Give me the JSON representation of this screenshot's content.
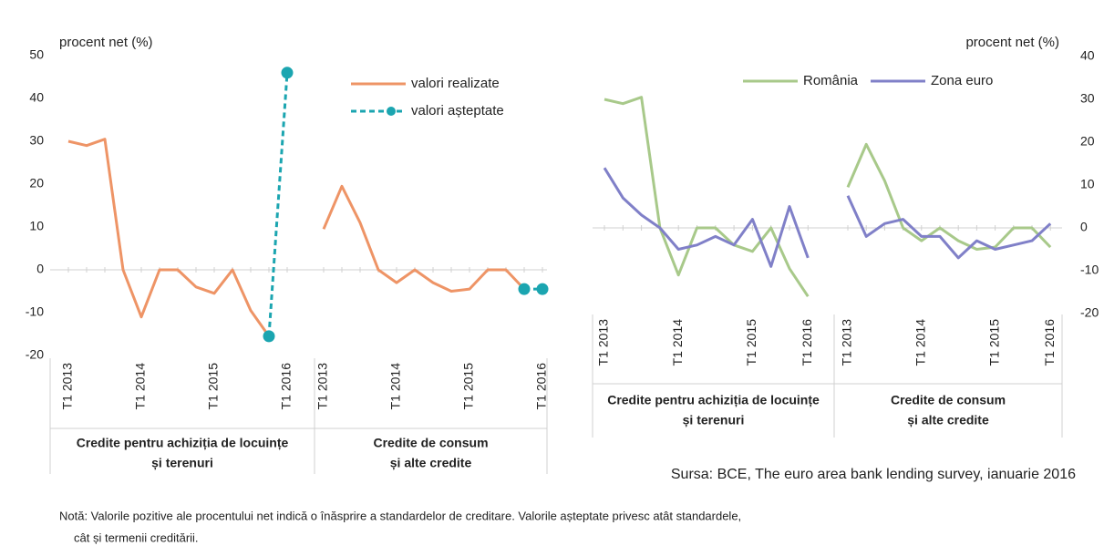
{
  "chart_data": [
    {
      "type": "line",
      "y_label": "procent net (%)",
      "ylim": [
        -20,
        50
      ],
      "yticks": [
        -20,
        -10,
        0,
        10,
        20,
        30,
        40,
        50
      ],
      "y_axis": "left",
      "legend": "top-right",
      "groups": [
        {
          "label": [
            "Credite pentru achiziția de locuințe",
            "și terenuri"
          ],
          "categories": [
            "T1 2013",
            null,
            null,
            null,
            "T1 2014",
            null,
            null,
            null,
            "T1 2015",
            null,
            null,
            null,
            "T1 2016"
          ]
        },
        {
          "label": [
            "Credite de consum",
            "și alte credite"
          ],
          "categories": [
            "T1 2013",
            null,
            null,
            null,
            "T1 2014",
            null,
            null,
            null,
            "T1 2015",
            null,
            null,
            null,
            "T1 2016"
          ]
        }
      ],
      "series": [
        {
          "name": "valori realizate",
          "color": "#ee9466",
          "dashed": false,
          "markers": false,
          "values": [
            30,
            29,
            30.5,
            0,
            -11,
            0,
            0,
            -4,
            -5.5,
            0,
            -9.5,
            -15.5,
            null,
            9.5,
            19.5,
            11,
            0,
            -3,
            0,
            -3,
            -5,
            -4.5,
            0,
            0,
            -4.5,
            null
          ]
        },
        {
          "name": "valori așteptate",
          "color": "#1ba5b0",
          "dashed": true,
          "markers": true,
          "values": [
            null,
            null,
            null,
            null,
            null,
            null,
            null,
            null,
            null,
            null,
            null,
            -15.5,
            46,
            null,
            null,
            null,
            null,
            null,
            null,
            null,
            null,
            null,
            null,
            null,
            -4.5,
            -4.5
          ]
        }
      ]
    },
    {
      "type": "line",
      "y_label": "procent net (%)",
      "ylim": [
        -20,
        40
      ],
      "yticks": [
        -20,
        -10,
        0,
        10,
        20,
        30,
        40
      ],
      "y_axis": "right",
      "legend": "top",
      "source": "Sursa: BCE, The euro area bank lending survey, ianuarie 2016",
      "groups": [
        {
          "label": [
            "Credite pentru achiziția de locuințe",
            "și terenuri"
          ],
          "categories": [
            "T1 2013",
            null,
            null,
            null,
            "T1 2014",
            null,
            null,
            null,
            "T1 2015",
            null,
            null,
            "T1 2016"
          ]
        },
        {
          "label": [
            "Credite de consum",
            "și alte credite"
          ],
          "categories": [
            "T1 2013",
            null,
            null,
            null,
            "T1 2014",
            null,
            null,
            null,
            "T1 2015",
            null,
            null,
            "T1 2016"
          ]
        }
      ],
      "series": [
        {
          "name": "România",
          "color": "#a8c98a",
          "dashed": false,
          "markers": false,
          "values": [
            30,
            29,
            30.5,
            0,
            -11,
            0,
            0,
            -4,
            -5.5,
            0,
            -9.5,
            -16,
            9.5,
            19.5,
            11,
            0,
            -3,
            0,
            -3,
            -5,
            -4.5,
            0,
            0,
            -4.5
          ]
        },
        {
          "name": "Zona euro",
          "color": "#8080c8",
          "dashed": false,
          "markers": false,
          "values": [
            14,
            7,
            3,
            0,
            -5,
            -4,
            -2,
            -4,
            2,
            -9,
            5,
            -7,
            7.5,
            -2,
            1,
            2,
            -2,
            -2,
            -7,
            -3,
            -5,
            -4,
            -3,
            1
          ]
        }
      ]
    }
  ],
  "note": [
    "Notă: Valorile pozitive ale procentului net indică o înăsprire a standardelor de creditare. Valorile așteptate privesc atât standardele,",
    "cât și termenii creditării."
  ]
}
